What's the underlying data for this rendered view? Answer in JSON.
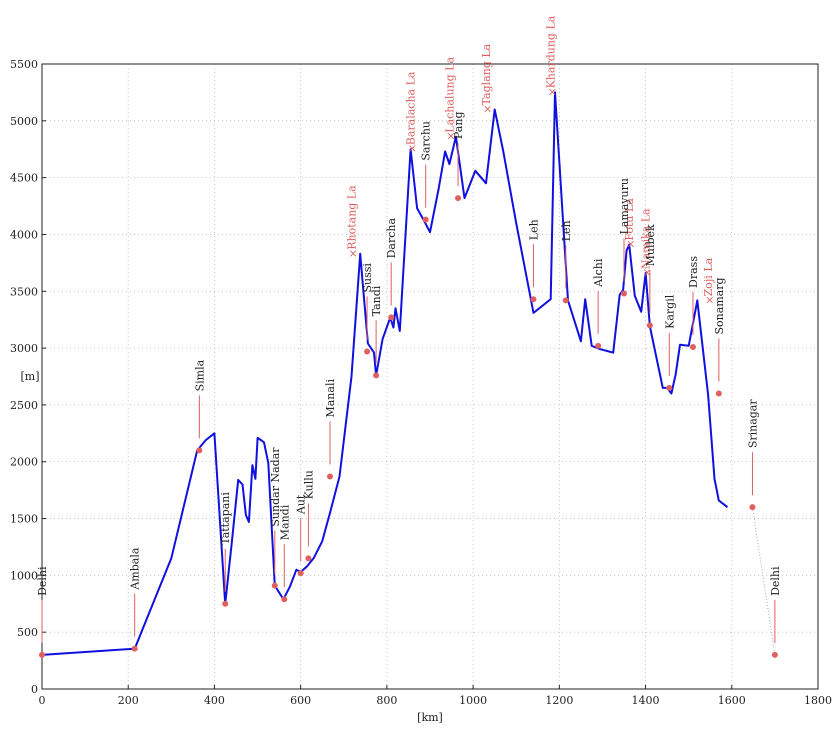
{
  "chart_data": {
    "type": "line",
    "title": "",
    "xlabel": "[km]",
    "ylabel": "[m]",
    "xlim": [
      0,
      1800
    ],
    "ylim": [
      0,
      5500
    ],
    "xticks": [
      0,
      200,
      400,
      600,
      800,
      1000,
      1200,
      1400,
      1600,
      1800
    ],
    "yticks": [
      0,
      500,
      1000,
      1500,
      2000,
      2500,
      3000,
      3500,
      4000,
      4500,
      5000,
      5500
    ],
    "grid": true,
    "colors": {
      "route": "#1010e0",
      "marker": "#e06060",
      "pass_label": "#e06060",
      "town_label": "#222222",
      "return_leg": "#aaaaaa"
    },
    "series": [
      {
        "x": [
          0,
          215,
          300,
          360,
          380,
          400,
          425,
          440,
          455,
          465,
          473,
          480,
          488,
          495,
          500,
          508,
          515,
          525,
          540,
          560,
          575,
          590,
          600,
          615,
          630,
          650,
          668,
          690,
          718,
          738,
          756,
          770,
          775,
          790,
          808,
          815,
          820,
          830,
          855,
          870,
          885,
          900,
          920,
          935,
          945,
          960,
          980,
          1005,
          1030,
          1050,
          1070,
          1100,
          1140,
          1180,
          1190,
          1220,
          1250,
          1260,
          1275,
          1295,
          1325,
          1340,
          1348,
          1356,
          1362,
          1375,
          1390,
          1400,
          1410,
          1440,
          1450,
          1460,
          1470,
          1480,
          1500,
          1520,
          1545,
          1560,
          1570,
          1590,
          1615,
          1630,
          1648
        ],
        "y": [
          300,
          355,
          1150,
          2100,
          2190,
          2250,
          750,
          1280,
          1840,
          1800,
          1530,
          1470,
          1970,
          1850,
          2210,
          2190,
          2170,
          1990,
          910,
          790,
          900,
          1050,
          1030,
          1080,
          1150,
          1300,
          1550,
          1870,
          2750,
          3830,
          3040,
          2960,
          2760,
          3080,
          3270,
          3180,
          3350,
          3150,
          4750,
          4230,
          4130,
          4020,
          4400,
          4730,
          4620,
          4860,
          4320,
          4560,
          4450,
          5100,
          4730,
          4100,
          3310,
          3430,
          5250,
          3420,
          3060,
          3430,
          3020,
          2990,
          2960,
          3470,
          3510,
          3860,
          3910,
          3460,
          3320,
          3660,
          3190,
          2650,
          2650,
          2600,
          2770,
          3030,
          3020,
          3420,
          2590,
          1850,
          1660,
          1600,
          null,
          null,
          null
        ],
        "note_skip": ""
      }
    ],
    "markers": [
      {
        "x": 0,
        "y": 300
      },
      {
        "x": 215,
        "y": 355
      },
      {
        "x": 365,
        "y": 2100
      },
      {
        "x": 425,
        "y": 750
      },
      {
        "x": 540,
        "y": 910
      },
      {
        "x": 562,
        "y": 790
      },
      {
        "x": 600,
        "y": 1020
      },
      {
        "x": 618,
        "y": 1150
      },
      {
        "x": 668,
        "y": 1870
      },
      {
        "x": 754,
        "y": 2970
      },
      {
        "x": 775,
        "y": 2760
      },
      {
        "x": 810,
        "y": 3270
      },
      {
        "x": 890,
        "y": 4130
      },
      {
        "x": 965,
        "y": 4320
      },
      {
        "x": 1140,
        "y": 3430
      },
      {
        "x": 1215,
        "y": 3420
      },
      {
        "x": 1290,
        "y": 3020
      },
      {
        "x": 1350,
        "y": 3480
      },
      {
        "x": 1410,
        "y": 3200
      },
      {
        "x": 1455,
        "y": 2650
      },
      {
        "x": 1510,
        "y": 3010
      },
      {
        "x": 1570,
        "y": 2600
      },
      {
        "x": 1648,
        "y": 1600
      },
      {
        "x": 1700,
        "y": 300
      }
    ],
    "annotations": [
      {
        "text": "Delhi",
        "x": 0,
        "y": 300,
        "kind": "town"
      },
      {
        "text": "Ambala",
        "x": 215,
        "y": 355,
        "kind": "town"
      },
      {
        "text": "Simla",
        "x": 365,
        "y": 2100,
        "kind": "town"
      },
      {
        "text": "Tattapani",
        "x": 425,
        "y": 750,
        "kind": "town"
      },
      {
        "text": "Sundar Nadar",
        "x": 540,
        "y": 910,
        "kind": "town"
      },
      {
        "text": "Mandi",
        "x": 562,
        "y": 790,
        "kind": "town"
      },
      {
        "text": "Aut",
        "x": 600,
        "y": 1020,
        "kind": "town"
      },
      {
        "text": "Kullu",
        "x": 618,
        "y": 1150,
        "kind": "town"
      },
      {
        "text": "Manali",
        "x": 668,
        "y": 1870,
        "kind": "town"
      },
      {
        "text": "Rhotang La",
        "x": 718,
        "y": 3830,
        "kind": "pass"
      },
      {
        "text": "Sussi",
        "x": 754,
        "y": 2970,
        "kind": "town"
      },
      {
        "text": "Tandi",
        "x": 775,
        "y": 2760,
        "kind": "town"
      },
      {
        "text": "Darcha",
        "x": 810,
        "y": 3270,
        "kind": "town"
      },
      {
        "text": "Baralacha La",
        "x": 855,
        "y": 4750,
        "kind": "pass"
      },
      {
        "text": "Sarchu",
        "x": 890,
        "y": 4130,
        "kind": "town"
      },
      {
        "text": "Lachalung La",
        "x": 945,
        "y": 4860,
        "kind": "pass"
      },
      {
        "text": "Pang",
        "x": 965,
        "y": 4320,
        "kind": "town"
      },
      {
        "text": "Taglang La",
        "x": 1030,
        "y": 5100,
        "kind": "pass"
      },
      {
        "text": "Leh",
        "x": 1140,
        "y": 3430,
        "kind": "town"
      },
      {
        "text": "Khardung La",
        "x": 1180,
        "y": 5250,
        "kind": "pass"
      },
      {
        "text": "Leh",
        "x": 1215,
        "y": 3420,
        "kind": "town"
      },
      {
        "text": "Alchi",
        "x": 1290,
        "y": 3020,
        "kind": "town"
      },
      {
        "text": "Fotu La",
        "x": 1362,
        "y": 3910,
        "kind": "pass"
      },
      {
        "text": "Lamayuru",
        "x": 1350,
        "y": 3480,
        "kind": "town"
      },
      {
        "text": "Namika La",
        "x": 1400,
        "y": 3660,
        "kind": "pass"
      },
      {
        "text": "Mulbek",
        "x": 1410,
        "y": 3200,
        "kind": "town"
      },
      {
        "text": "Kargil",
        "x": 1455,
        "y": 2650,
        "kind": "town"
      },
      {
        "text": "Drass",
        "x": 1510,
        "y": 3010,
        "kind": "town"
      },
      {
        "text": "Zoji La",
        "x": 1545,
        "y": 3420,
        "kind": "pass"
      },
      {
        "text": "Sonamarg",
        "x": 1570,
        "y": 2600,
        "kind": "town"
      },
      {
        "text": "Srinagar",
        "x": 1648,
        "y": 1600,
        "kind": "town"
      },
      {
        "text": "Delhi",
        "x": 1700,
        "y": 300,
        "kind": "town"
      }
    ]
  }
}
